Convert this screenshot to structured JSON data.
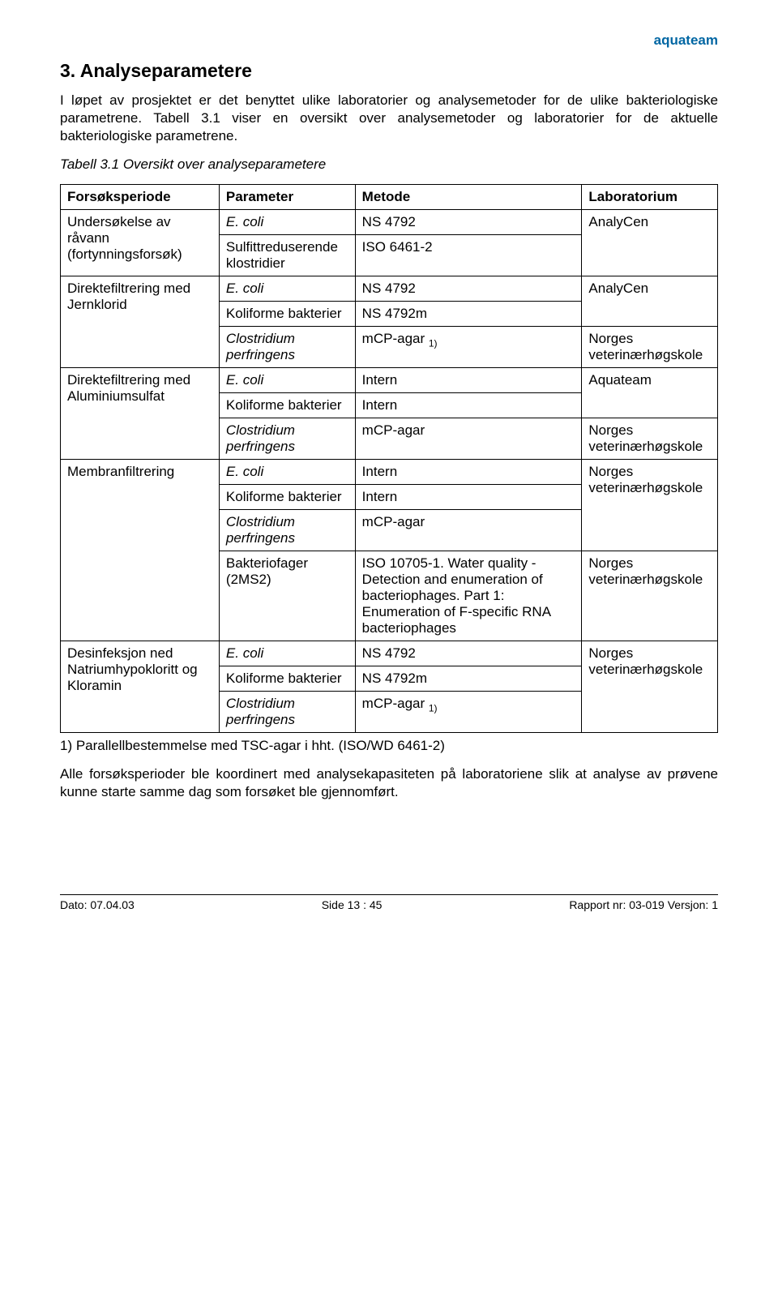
{
  "brand": "aquateam",
  "section_title": "3. Analyseparametere",
  "para1": "I løpet av prosjektet er det benyttet ulike laboratorier og analysemetoder for de ulike bakteriologiske parametrene.  Tabell 3.1 viser en oversikt over analysemetoder og laboratorier for de aktuelle bakteriologiske parametrene.",
  "caption": "Tabell 3.1 Oversikt over analyseparametere",
  "headers": {
    "c1": "Forsøksperiode",
    "c2": "Parameter",
    "c3": "Metode",
    "c4": "Laboratorium"
  },
  "r1": {
    "fp": "Undersøkelse av råvann (fortynningsforsøk)",
    "p": "E. coli",
    "m": "NS 4792",
    "lab": "AnalyCen"
  },
  "r2": {
    "p": "Sulfittreduserende klostridier",
    "m": "ISO 6461-2"
  },
  "r3": {
    "fp": "Direktefiltrering med Jernklorid",
    "p": "E. coli",
    "m": "NS 4792",
    "lab": "AnalyCen"
  },
  "r4": {
    "p": "Koliforme bakterier",
    "m": "NS 4792m"
  },
  "r5": {
    "p": "Clostridium perfringens",
    "m": "mCP-agar ",
    "m_sub": "1)",
    "lab": "Norges veterinærhøgskole"
  },
  "r6": {
    "fp": "Direktefiltrering med Aluminiumsulfat",
    "p": "E. coli",
    "m": "Intern",
    "lab": "Aquateam"
  },
  "r7": {
    "p": "Koliforme bakterier",
    "m": "Intern"
  },
  "r8": {
    "p": "Clostridium perfringens",
    "m": "mCP-agar",
    "lab": "Norges veterinærhøgskole"
  },
  "r9": {
    "fp": "Membranfiltrering",
    "p": "E. coli",
    "m": "Intern",
    "lab": "Norges veterinærhøgskole"
  },
  "r10": {
    "p": "Koliforme bakterier",
    "m": "Intern"
  },
  "r11": {
    "p": "Clostridium perfringens",
    "m": "mCP-agar"
  },
  "r12": {
    "p": "Bakteriofager (2MS2)",
    "m": "ISO 10705-1. Water quality - Detection and enumeration of bacteriophages. Part 1: Enumeration of F-specific RNA bacteriophages",
    "lab": "Norges veterinærhøgskole"
  },
  "r13": {
    "fp": "Desinfeksjon ned Natriumhypokloritt og Kloramin",
    "p": "E. coli",
    "m": "NS 4792",
    "lab": "Norges veterinærhøgskole"
  },
  "r14": {
    "p": "Koliforme bakterier",
    "m": "NS 4792m"
  },
  "r15": {
    "p": "Clostridium perfringens",
    "m": "mCP-agar ",
    "m_sub": "1)"
  },
  "footnote": "1)   Parallellbestemmelse med TSC-agar i hht. (ISO/WD 6461-2)",
  "para2": "Alle forsøksperioder ble koordinert med analysekapasiteten på laboratoriene slik at analyse av prøvene kunne starte samme dag som forsøket ble gjennomført.",
  "footer": {
    "left": "Dato: 07.04.03",
    "center": "Side 13 : 45",
    "right": "Rapport nr: 03-019  Versjon: 1"
  }
}
